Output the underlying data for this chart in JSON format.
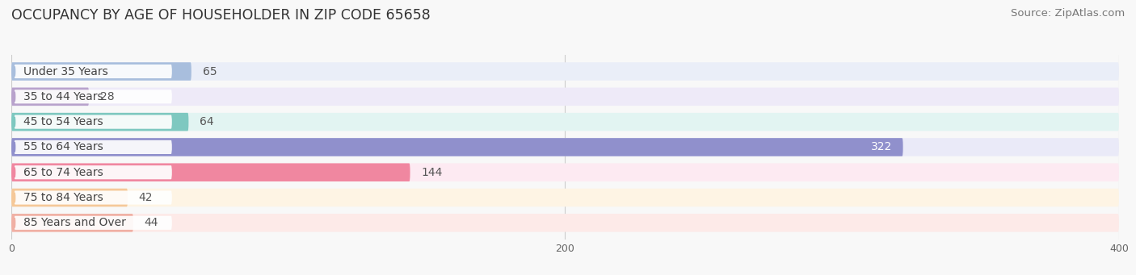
{
  "title": "OCCUPANCY BY AGE OF HOUSEHOLDER IN ZIP CODE 65658",
  "source": "Source: ZipAtlas.com",
  "categories": [
    "Under 35 Years",
    "35 to 44 Years",
    "45 to 54 Years",
    "55 to 64 Years",
    "65 to 74 Years",
    "75 to 84 Years",
    "85 Years and Over"
  ],
  "values": [
    65,
    28,
    64,
    322,
    144,
    42,
    44
  ],
  "bar_colors": [
    "#a8bedd",
    "#b8a2cc",
    "#7ec8c0",
    "#9090cc",
    "#f087a0",
    "#f5c898",
    "#f0b0a4"
  ],
  "bar_bg_colors": [
    "#eaeef8",
    "#eeeaf8",
    "#e2f4f2",
    "#eaeaf8",
    "#fdeaf2",
    "#fef4e4",
    "#fdeae8"
  ],
  "label_colors": [
    "#7098bb",
    "#9870aa",
    "#50a8a0",
    "#6868aa",
    "#e05070",
    "#d8a060",
    "#d08878"
  ],
  "xlim": [
    0,
    400
  ],
  "xticks": [
    0,
    200,
    400
  ],
  "background_color": "#f8f8f8",
  "bar_height": 0.72,
  "title_fontsize": 12.5,
  "source_fontsize": 9.5,
  "label_fontsize": 10,
  "value_fontsize": 10
}
